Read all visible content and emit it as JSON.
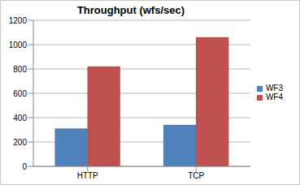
{
  "chart_data": {
    "type": "bar",
    "title": "Throughput (wfs/sec)",
    "categories": [
      "HTTP",
      "TCP"
    ],
    "series": [
      {
        "name": "WF3",
        "color": "#4f81bd",
        "values": [
          310,
          340
        ]
      },
      {
        "name": "WF4",
        "color": "#c0504d",
        "values": [
          820,
          1060
        ]
      }
    ],
    "ylim": [
      0,
      1200
    ],
    "yticks": [
      0,
      200,
      400,
      600,
      800,
      1000,
      1200
    ],
    "grid": true,
    "legend": "right"
  }
}
